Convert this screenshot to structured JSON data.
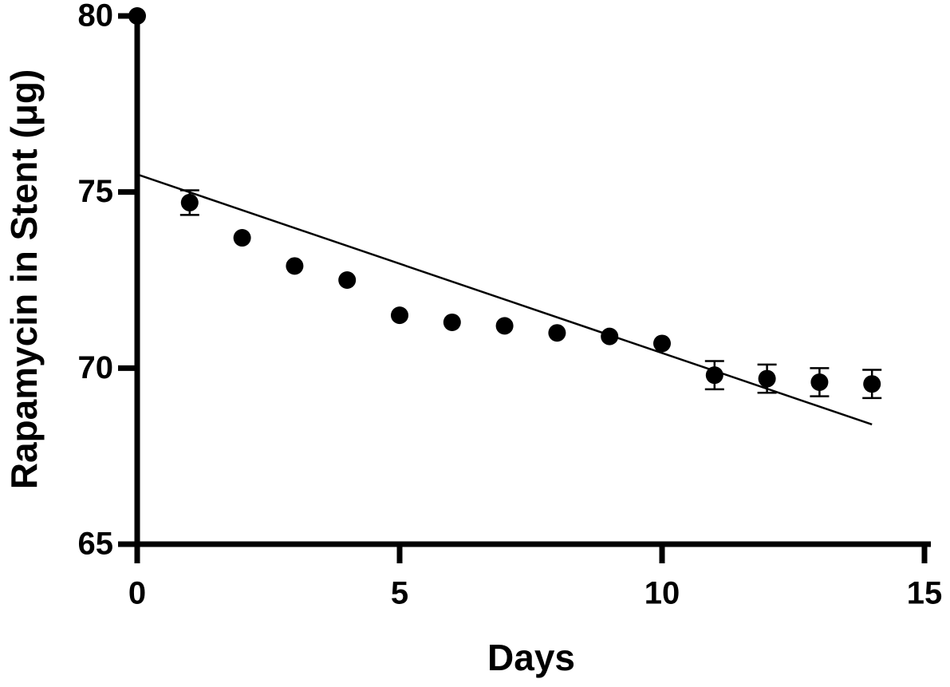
{
  "chart_data": {
    "type": "scatter",
    "xlabel": "Days",
    "ylabel": "Rapamycin in Stent (μg)",
    "x": [
      0,
      1,
      2,
      3,
      4,
      5,
      6,
      7,
      8,
      9,
      10,
      11,
      12,
      13,
      14
    ],
    "series": [
      {
        "color": "#000000",
        "values": [
          80,
          74.7,
          73.7,
          72.9,
          72.5,
          71.5,
          71.3,
          71.2,
          71.0,
          70.9,
          70.7,
          69.8,
          69.7,
          69.6,
          69.55
        ],
        "errors": [
          null,
          0.35,
          null,
          null,
          null,
          null,
          null,
          null,
          null,
          null,
          null,
          0.4,
          0.4,
          0.4,
          0.4
        ]
      }
    ],
    "fit": {
      "x": [
        0,
        14
      ],
      "y": [
        75.5,
        68.4
      ],
      "color": "#000000"
    },
    "xlim": [
      0,
      15
    ],
    "xticks": [
      0,
      5,
      10,
      15
    ],
    "ylim": [
      65,
      80
    ],
    "yticks": [
      65,
      70,
      75,
      80
    ]
  }
}
